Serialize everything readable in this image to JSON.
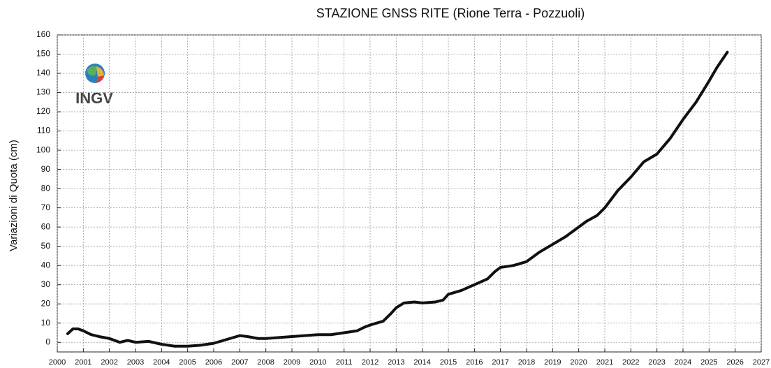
{
  "chart_data": {
    "type": "line",
    "title": "STAZIONE GNSS RITE (Rione Terra - Pozzuoli)",
    "y_label": "Variazioni di Quota (cm)",
    "logo_text": "INGV",
    "x": [
      2000.4,
      2000.6,
      2000.8,
      2001,
      2001.3,
      2001.6,
      2002,
      2002.4,
      2002.7,
      2003,
      2003.5,
      2004,
      2004.5,
      2005,
      2005.5,
      2006,
      2006.5,
      2007,
      2007.3,
      2007.7,
      2008,
      2008.5,
      2009,
      2009.5,
      2010,
      2010.5,
      2011,
      2011.5,
      2011.8,
      2012,
      2012.5,
      2012.8,
      2013,
      2013.3,
      2013.7,
      2014,
      2014.5,
      2014.8,
      2015,
      2015.5,
      2016,
      2016.5,
      2016.8,
      2017,
      2017.5,
      2018,
      2018.5,
      2019,
      2019.5,
      2020,
      2020.3,
      2020.7,
      2021,
      2021.5,
      2022,
      2022.5,
      2023,
      2023.5,
      2024,
      2024.5,
      2025,
      2025.3,
      2025.7
    ],
    "series": [
      {
        "color": "#111111",
        "values": [
          4.5,
          7,
          7,
          6,
          4,
          3,
          2,
          0,
          1,
          0,
          0.5,
          -1,
          -2,
          -2,
          -1.5,
          -0.5,
          1.5,
          3.5,
          3,
          2,
          2,
          2.5,
          3,
          3.5,
          4,
          4,
          5,
          6,
          8,
          9,
          11,
          15,
          18,
          20.5,
          21,
          20.5,
          21,
          22,
          25,
          27,
          30,
          33,
          37,
          39,
          40,
          42,
          47,
          51,
          55,
          60,
          63,
          66,
          70,
          79,
          86,
          94,
          98,
          106,
          116,
          125,
          136,
          143,
          151
        ]
      }
    ],
    "xlim": [
      2000,
      2027
    ],
    "xticks": [
      2000,
      2001,
      2002,
      2003,
      2004,
      2005,
      2006,
      2007,
      2008,
      2009,
      2010,
      2011,
      2012,
      2013,
      2014,
      2015,
      2016,
      2017,
      2018,
      2019,
      2020,
      2021,
      2022,
      2023,
      2024,
      2025,
      2026,
      2027
    ],
    "ylim": [
      -5,
      160
    ],
    "yticks": [
      0,
      10,
      20,
      30,
      40,
      50,
      60,
      70,
      80,
      90,
      100,
      110,
      120,
      130,
      140,
      150,
      160
    ],
    "grid": true
  }
}
